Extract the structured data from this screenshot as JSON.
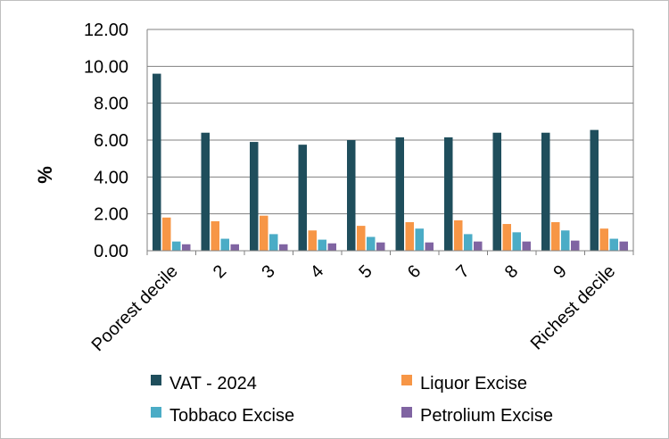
{
  "chart_data": {
    "type": "bar",
    "title": "",
    "xlabel": "",
    "ylabel": "%",
    "ylim": [
      0,
      12
    ],
    "yticks": [
      0,
      2,
      4,
      6,
      8,
      10,
      12
    ],
    "ytick_labels": [
      "0.00",
      "2.00",
      "4.00",
      "6.00",
      "8.00",
      "10.00",
      "12.00"
    ],
    "grid": true,
    "legend_position": "bottom",
    "categories": [
      "Poorest decile",
      "2",
      "3",
      "4",
      "5",
      "6",
      "7",
      "8",
      "9",
      "Richest decile"
    ],
    "series": [
      {
        "name": "VAT - 2024",
        "color": "#1f4e5c",
        "values": [
          9.6,
          6.4,
          5.9,
          5.75,
          6.0,
          6.15,
          6.15,
          6.4,
          6.4,
          6.55
        ]
      },
      {
        "name": "Liquor Excise",
        "color": "#f79646",
        "values": [
          1.8,
          1.6,
          1.9,
          1.1,
          1.35,
          1.55,
          1.65,
          1.45,
          1.55,
          1.2
        ]
      },
      {
        "name": "Tobbaco Excise",
        "color": "#4bacc6",
        "values": [
          0.5,
          0.65,
          0.9,
          0.6,
          0.75,
          1.2,
          0.9,
          1.0,
          1.1,
          0.65
        ]
      },
      {
        "name": "Petrolium Excise",
        "color": "#8064a2",
        "values": [
          0.35,
          0.35,
          0.35,
          0.4,
          0.45,
          0.45,
          0.5,
          0.5,
          0.55,
          0.5
        ]
      }
    ]
  }
}
